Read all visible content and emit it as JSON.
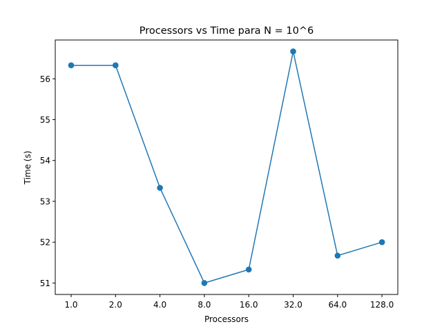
{
  "chart_data": {
    "type": "line",
    "title": "Processors vs Time para N = 10^6",
    "xlabel": "Processors",
    "ylabel": "Time (s)",
    "categories": [
      "1.0",
      "2.0",
      "4.0",
      "8.0",
      "16.0",
      "32.0",
      "64.0",
      "128.0"
    ],
    "series": [
      {
        "values": [
          56.33,
          56.33,
          53.33,
          51.0,
          51.33,
          56.67,
          51.67,
          52.0
        ],
        "color": "#1f77b4",
        "marker": "circle"
      }
    ],
    "yticks": [
      51,
      52,
      53,
      54,
      55,
      56
    ],
    "ylim": [
      50.72,
      56.95
    ],
    "grid": false,
    "legend": "none"
  }
}
